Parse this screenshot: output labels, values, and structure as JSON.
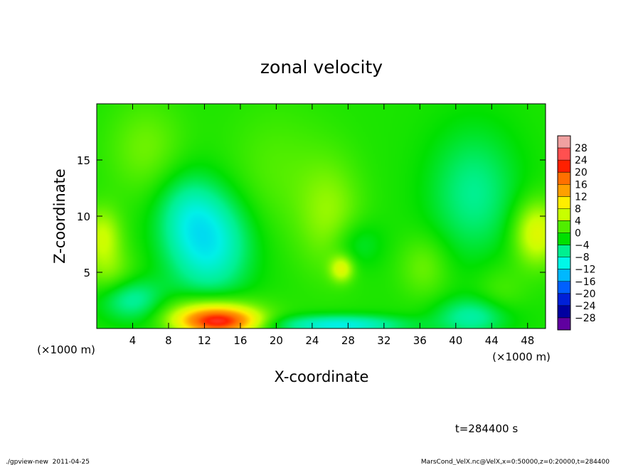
{
  "chart_data": {
    "type": "heatmap",
    "title": "zonal velocity",
    "xlabel": "X-coordinate",
    "ylabel": "Z-coordinate",
    "x_unit_label": "(×1000 m)",
    "y_unit_label": "(×1000 m)",
    "xlim": [
      0,
      50
    ],
    "ylim": [
      0,
      20
    ],
    "x_ticks": [
      {
        "value": 4,
        "label": "4"
      },
      {
        "value": 8,
        "label": "8"
      },
      {
        "value": 12,
        "label": "12"
      },
      {
        "value": 16,
        "label": "16"
      },
      {
        "value": 20,
        "label": "20"
      },
      {
        "value": 24,
        "label": "24"
      },
      {
        "value": 28,
        "label": "28"
      },
      {
        "value": 32,
        "label": "32"
      },
      {
        "value": 36,
        "label": "36"
      },
      {
        "value": 40,
        "label": "40"
      },
      {
        "value": 44,
        "label": "44"
      },
      {
        "value": 48,
        "label": "48"
      }
    ],
    "y_ticks": [
      {
        "value": 5,
        "label": "5"
      },
      {
        "value": 10,
        "label": "10"
      },
      {
        "value": 15,
        "label": "15"
      }
    ],
    "colorbar": {
      "range": [
        -30,
        30
      ],
      "levels": [
        -28,
        -24,
        -20,
        -16,
        -12,
        -8,
        -4,
        0,
        4,
        8,
        12,
        16,
        20,
        24,
        28
      ],
      "labels": [
        "28",
        "24",
        "20",
        "16",
        "12",
        "8",
        "4",
        "0",
        "−4",
        "−8",
        "−12",
        "−16",
        "−20",
        "−24",
        "−28"
      ],
      "colors": [
        "#f0a0a0",
        "#ff5050",
        "#ff2000",
        "#ff7000",
        "#ffa000",
        "#ffee00",
        "#c8ff00",
        "#50ee00",
        "#00e000",
        "#00f090",
        "#00f8e8",
        "#00b8ff",
        "#0060ff",
        "#0020d8",
        "#0000a0",
        "#6000a0"
      ]
    },
    "field_features": [
      {
        "x": 13.5,
        "z": 0.6,
        "amp": 22,
        "sx": 3.0,
        "sz": 0.8
      },
      {
        "x": 12.5,
        "z": 1.8,
        "amp": 5,
        "sx": 4.0,
        "sz": 1.0
      },
      {
        "x": 12.5,
        "z": 7.5,
        "amp": -9,
        "sx": 3.2,
        "sz": 3.2
      },
      {
        "x": 10.0,
        "z": 10.5,
        "amp": -4,
        "sx": 2.5,
        "sz": 2.5
      },
      {
        "x": 4.0,
        "z": 2.5,
        "amp": -6,
        "sx": 2.5,
        "sz": 1.3
      },
      {
        "x": 1.5,
        "z": 5.0,
        "amp": 3,
        "sx": 2.0,
        "sz": 1.6
      },
      {
        "x": 0.6,
        "z": 8.2,
        "amp": 6,
        "sx": 1.5,
        "sz": 1.8
      },
      {
        "x": 5.5,
        "z": 16.0,
        "amp": 3,
        "sx": 3.0,
        "sz": 3.0
      },
      {
        "x": 27.0,
        "z": 0.3,
        "amp": -9,
        "sx": 5.0,
        "sz": 0.6
      },
      {
        "x": 42.0,
        "z": 1.0,
        "amp": -6,
        "sx": 3.0,
        "sz": 1.2
      },
      {
        "x": 27.3,
        "z": 5.3,
        "amp": 7,
        "sx": 0.9,
        "sz": 0.8
      },
      {
        "x": 26.0,
        "z": 10.0,
        "amp": 4,
        "sx": 2.5,
        "sz": 3.5
      },
      {
        "x": 36.5,
        "z": 5.5,
        "amp": 3,
        "sx": 2.0,
        "sz": 2.0
      },
      {
        "x": 29.0,
        "z": 7.5,
        "amp": -3,
        "sx": 2.0,
        "sz": 1.5
      },
      {
        "x": 42.0,
        "z": 12.0,
        "amp": -5,
        "sx": 3.5,
        "sz": 4.0
      },
      {
        "x": 49.0,
        "z": 8.5,
        "amp": 8,
        "sx": 1.8,
        "sz": 2.0
      },
      {
        "x": 45.0,
        "z": 3.0,
        "amp": 2,
        "sx": 2.0,
        "sz": 2.0
      },
      {
        "x": 20.0,
        "z": 14.0,
        "amp": 2,
        "sx": 4.0,
        "sz": 4.0
      }
    ],
    "field_background": 1.0
  },
  "annotations": {
    "time_label": "t=284400 s",
    "footer_left": "./gpview-new  2011-04-25",
    "footer_right": "MarsCond_VelX.nc@VelX,x=0:50000,z=0:20000,t=284400"
  }
}
